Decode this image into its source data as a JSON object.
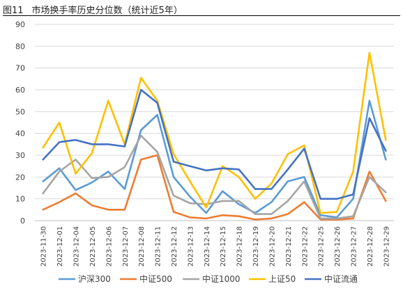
{
  "figure": {
    "label": "图11",
    "title": "市场换手率历史分位数（统计近5年）"
  },
  "colors": {
    "grid": "#d9d9d9",
    "axis": "#bfbfbf",
    "series": [
      "#5b9bd5",
      "#ed7d31",
      "#a5a5a5",
      "#ffc000",
      "#4472c4"
    ]
  },
  "chart_data": {
    "type": "line",
    "title": "",
    "xlabel": "",
    "ylabel": "",
    "ylim": [
      0,
      90
    ],
    "yticks": [
      0,
      10,
      20,
      30,
      40,
      50,
      60,
      70,
      80,
      90
    ],
    "grid": true,
    "legend_position": "bottom",
    "categories": [
      "2023-11-30",
      "2023-12-01",
      "2023-12-04",
      "2023-12-05",
      "2023-12-06",
      "2023-12-07",
      "2023-12-08",
      "2023-12-11",
      "2023-12-12",
      "2023-12-13",
      "2023-12-14",
      "2023-12-15",
      "2023-12-18",
      "2023-12-19",
      "2023-12-20",
      "2023-12-21",
      "2023-12-22",
      "2023-12-25",
      "2023-12-26",
      "2023-12-27",
      "2023-12-28",
      "2023-12-29"
    ],
    "series": [
      {
        "name": "沪深300",
        "values": [
          18,
          24,
          14,
          17.5,
          22.5,
          14.5,
          41.5,
          48.5,
          20,
          11,
          3.5,
          13.5,
          7.5,
          3.5,
          8.5,
          18,
          20,
          2.5,
          1.5,
          10,
          55,
          28
        ]
      },
      {
        "name": "中证500",
        "values": [
          5,
          8.5,
          12.5,
          7,
          5,
          5,
          28,
          30,
          4,
          1.5,
          1,
          2.5,
          2,
          0.5,
          1,
          3,
          8.5,
          0.5,
          0.5,
          1,
          22.5,
          9
        ]
      },
      {
        "name": "中证1000",
        "values": [
          12.5,
          22.5,
          28,
          19.5,
          20,
          24.5,
          39,
          31.5,
          11.5,
          8,
          7.5,
          9,
          9,
          3,
          3,
          9,
          18,
          1,
          1,
          2,
          20,
          13
        ]
      },
      {
        "name": "上证50",
        "values": [
          33.5,
          45,
          21.5,
          31,
          55,
          35,
          65.5,
          55,
          30.5,
          18,
          6,
          25,
          20,
          10,
          17,
          30.5,
          34.5,
          3.5,
          4,
          22.5,
          77,
          37
        ]
      },
      {
        "name": "中证流通",
        "values": [
          28,
          36,
          37,
          35,
          35,
          34,
          60,
          54,
          27,
          25,
          23,
          24,
          23.5,
          14.5,
          14.5,
          23.5,
          33,
          10,
          10,
          12,
          47,
          32
        ]
      }
    ]
  }
}
